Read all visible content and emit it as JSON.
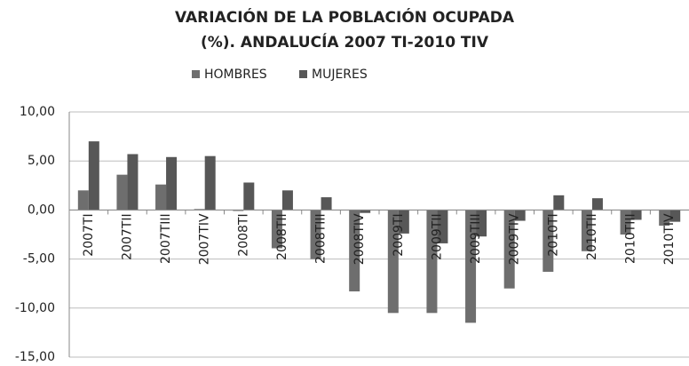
{
  "chart_data": {
    "type": "bar",
    "title": [
      "VARIACIÓN DE LA POBLACIÓN OCUPADA",
      "(%). ANDALUCÍA 2007 TI-2010 TIV"
    ],
    "categories": [
      "2007TI",
      "2007TII",
      "2007TIII",
      "2007TIV",
      "2008TI",
      "2008TII",
      "2008TIII",
      "2008TIV",
      "2009TI",
      "2009TII",
      "2009TIII",
      "2009TIV",
      "2010TI",
      "2010TII",
      "2010TIII",
      "2010TIV"
    ],
    "series": [
      {
        "name": "HOMBRES",
        "color": "#6e6e6e",
        "values": [
          2.0,
          3.6,
          2.6,
          0.1,
          -0.1,
          -3.9,
          -5.0,
          -8.3,
          -10.5,
          -10.5,
          -11.5,
          -8.0,
          -6.3,
          -4.2,
          -2.5,
          -1.6
        ]
      },
      {
        "name": "MUJERES",
        "color": "#575757",
        "values": [
          7.0,
          5.7,
          5.4,
          5.5,
          2.8,
          2.0,
          1.3,
          -0.3,
          -2.4,
          -3.4,
          -2.7,
          -1.1,
          1.5,
          1.2,
          -1.0,
          -1.2
        ]
      }
    ],
    "ylim": [
      -15,
      10
    ],
    "yticks": [
      {
        "value": -15,
        "label": "-15,00"
      },
      {
        "value": -10,
        "label": "-10,00"
      },
      {
        "value": -5,
        "label": "-5,00"
      },
      {
        "value": 0,
        "label": "0,00"
      },
      {
        "value": 5,
        "label": "5,00"
      },
      {
        "value": 10,
        "label": "10,00"
      }
    ],
    "grid": true
  }
}
